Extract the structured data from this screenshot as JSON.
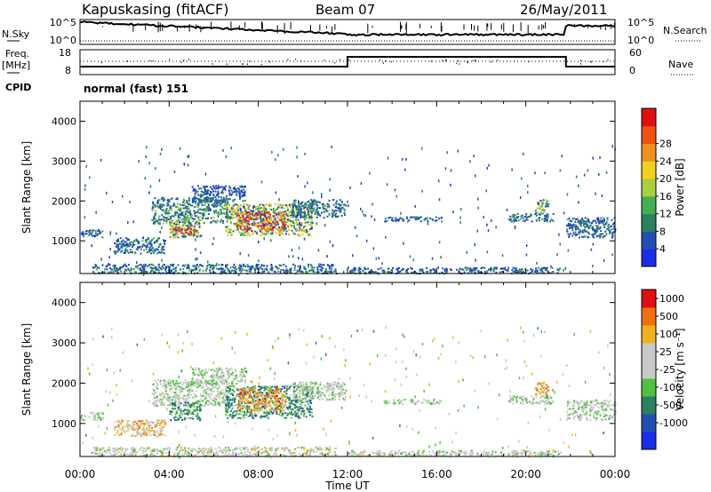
{
  "header": {
    "station": "Kapuskasing (fitACF)",
    "beam": "Beam 07",
    "date": "26/May/2011"
  },
  "strips": {
    "nsky_label": "N.Sky",
    "nsky_ticks": [
      "10^5",
      "10^0"
    ],
    "nsearch_label": "N.Search",
    "freq_label_1": "Freq.",
    "freq_label_2": "[MHz]",
    "freq_ticks": [
      "18",
      "8"
    ],
    "nave_label": "Nave",
    "nave_ticks": [
      "60",
      "0"
    ],
    "cpid_label": "CPID",
    "cpid_value": "normal (fast) 151"
  },
  "colors": {
    "power_scale": [
      "#1a2ee8",
      "#2250b0",
      "#2a8060",
      "#40b050",
      "#a8d040",
      "#f0d020",
      "#f09020",
      "#f05010",
      "#e01010"
    ],
    "velocity_scale": [
      "#1a2ee8",
      "#2250b0",
      "#2a8060",
      "#50c040",
      "#c8c8c8",
      "#c8c8c8",
      "#f0b020",
      "#f07010",
      "#e01010"
    ]
  },
  "chart_data": [
    {
      "type": "heatmap",
      "name": "power",
      "ylabel": "Slant Range [km]",
      "xlabel": "",
      "xlim": [
        0,
        24
      ],
      "ylim": [
        180,
        4500
      ],
      "yticks": [
        "1000",
        "2000",
        "3000",
        "4000"
      ],
      "colorbar_label": "Power [dB]",
      "colorbar_ticks": [
        "4",
        "8",
        "12",
        "16",
        "20",
        "24",
        "28"
      ],
      "patches": [
        {
          "t0": 0.0,
          "t1": 1.0,
          "r0": 1100,
          "r1": 1300,
          "level": 0.15
        },
        {
          "t0": 1.5,
          "t1": 3.8,
          "r0": 700,
          "r1": 1100,
          "level": 0.2
        },
        {
          "t0": 3.2,
          "t1": 6.6,
          "r0": 1450,
          "r1": 2100,
          "level": 0.3
        },
        {
          "t0": 4.0,
          "t1": 5.4,
          "r0": 1100,
          "r1": 1550,
          "level": 0.55
        },
        {
          "t0": 4.2,
          "t1": 5.2,
          "r0": 1150,
          "r1": 1400,
          "level": 0.85
        },
        {
          "t0": 5.0,
          "t1": 7.4,
          "r0": 2000,
          "r1": 2400,
          "level": 0.12
        },
        {
          "t0": 6.5,
          "t1": 10.4,
          "r0": 1150,
          "r1": 1950,
          "level": 0.55
        },
        {
          "t0": 7.0,
          "t1": 9.2,
          "r0": 1250,
          "r1": 1750,
          "level": 0.85
        },
        {
          "t0": 9.5,
          "t1": 11.9,
          "r0": 1600,
          "r1": 2050,
          "level": 0.2
        },
        {
          "t0": 0.5,
          "t1": 11.5,
          "r0": 200,
          "r1": 430,
          "level": 0.2
        },
        {
          "t0": 12.0,
          "t1": 21.5,
          "r0": 200,
          "r1": 350,
          "level": 0.15
        },
        {
          "t0": 13.6,
          "t1": 16.2,
          "r0": 1500,
          "r1": 1620,
          "level": 0.15
        },
        {
          "t0": 19.2,
          "t1": 21.2,
          "r0": 1500,
          "r1": 1700,
          "level": 0.2
        },
        {
          "t0": 20.4,
          "t1": 21.0,
          "r0": 1700,
          "r1": 2050,
          "level": 0.45
        },
        {
          "t0": 21.8,
          "t1": 24.0,
          "r0": 1100,
          "r1": 1600,
          "level": 0.15
        }
      ]
    },
    {
      "type": "heatmap",
      "name": "velocity",
      "ylabel": "Slant Range [km]",
      "xlabel": "Time UT",
      "xlim": [
        0,
        24
      ],
      "ylim": [
        180,
        4500
      ],
      "xticks": [
        "00:00",
        "04:00",
        "08:00",
        "12:00",
        "16:00",
        "20:00",
        "00:00"
      ],
      "yticks": [
        "1000",
        "2000",
        "3000",
        "4000"
      ],
      "colorbar_label": "Velocity [m s⁻¹]",
      "colorbar_ticks": [
        "1000",
        "500",
        "100",
        "25",
        "-25",
        "-100",
        "-500",
        "-1000"
      ],
      "patches": [
        {
          "t0": 0.0,
          "t1": 1.0,
          "r0": 1100,
          "r1": 1300,
          "level": 0.5
        },
        {
          "t0": 1.5,
          "t1": 3.8,
          "r0": 700,
          "r1": 1100,
          "level": 0.7
        },
        {
          "t0": 3.2,
          "t1": 6.6,
          "r0": 1450,
          "r1": 2100,
          "level": 0.5
        },
        {
          "t0": 4.0,
          "t1": 5.4,
          "r0": 1100,
          "r1": 1550,
          "level": 0.3
        },
        {
          "t0": 5.0,
          "t1": 7.4,
          "r0": 2000,
          "r1": 2400,
          "level": 0.5
        },
        {
          "t0": 6.5,
          "t1": 10.4,
          "r0": 1150,
          "r1": 1950,
          "level": 0.3
        },
        {
          "t0": 7.0,
          "t1": 9.2,
          "r0": 1300,
          "r1": 1900,
          "level": 0.78
        },
        {
          "t0": 9.5,
          "t1": 11.9,
          "r0": 1600,
          "r1": 2050,
          "level": 0.5
        },
        {
          "t0": 0.5,
          "t1": 11.5,
          "r0": 200,
          "r1": 430,
          "level": 0.55
        },
        {
          "t0": 12.0,
          "t1": 21.5,
          "r0": 200,
          "r1": 350,
          "level": 0.55
        },
        {
          "t0": 13.6,
          "t1": 16.2,
          "r0": 1500,
          "r1": 1620,
          "level": 0.5
        },
        {
          "t0": 19.2,
          "t1": 21.2,
          "r0": 1500,
          "r1": 1700,
          "level": 0.5
        },
        {
          "t0": 20.4,
          "t1": 21.0,
          "r0": 1700,
          "r1": 2050,
          "level": 0.75
        },
        {
          "t0": 21.8,
          "t1": 24.0,
          "r0": 1100,
          "r1": 1600,
          "level": 0.5
        }
      ]
    }
  ]
}
